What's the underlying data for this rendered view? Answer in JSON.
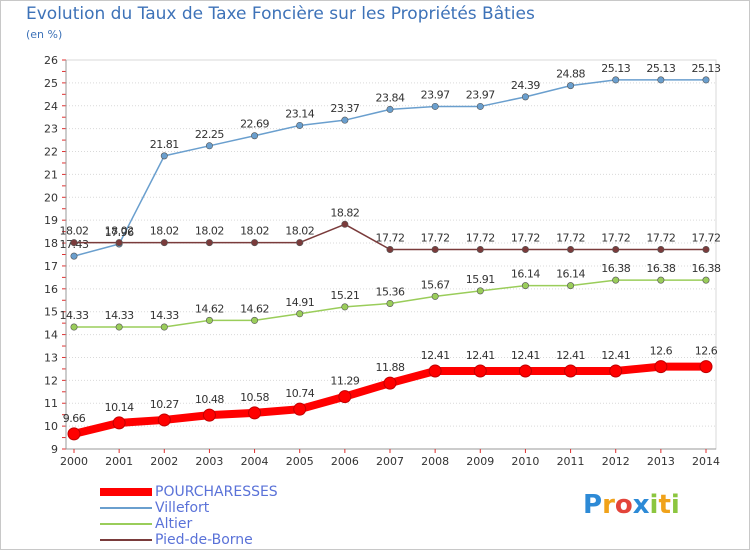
{
  "title": "Evolution du Taux de Taxe Foncière sur les Propriétés Bâties",
  "subtitle": "(en %)",
  "logo": {
    "text": "Proxiti",
    "letters": [
      "P",
      "r",
      "o",
      "x",
      "i",
      "t",
      "i"
    ]
  },
  "chart_data": {
    "type": "line",
    "title": "Evolution du Taux de Taxe Foncière sur les Propriétés Bâties",
    "ylabel": "(en %)",
    "xlabel": "",
    "x": [
      2000,
      2001,
      2002,
      2003,
      2004,
      2005,
      2006,
      2007,
      2008,
      2009,
      2010,
      2011,
      2012,
      2013,
      2014
    ],
    "ylim": [
      9,
      26
    ],
    "yticks": [
      9,
      10,
      11,
      12,
      13,
      14,
      15,
      16,
      17,
      18,
      19,
      20,
      21,
      22,
      23,
      24,
      25,
      26
    ],
    "grid": "horizontal",
    "legend": "bottom-left",
    "series": [
      {
        "name": "POURCHARESSES",
        "color": "#ff0000",
        "values": [
          9.66,
          10.14,
          10.27,
          10.48,
          10.58,
          10.74,
          11.29,
          11.88,
          12.41,
          12.41,
          12.41,
          12.41,
          12.41,
          12.6,
          12.6
        ],
        "labels": [
          "9.66",
          "10.14",
          "10.27",
          "10.48",
          "10.58",
          "10.74",
          "11.29",
          "11.88",
          "12.41",
          "12.41",
          "12.41",
          "12.41",
          "12.41",
          "12.6",
          "12.6"
        ]
      },
      {
        "name": "Villefort",
        "color": "#6a9fce",
        "values": [
          17.43,
          17.96,
          21.81,
          22.25,
          22.69,
          23.14,
          23.37,
          23.84,
          23.97,
          23.97,
          24.39,
          24.88,
          25.13,
          25.13,
          25.13
        ],
        "labels": [
          "17.43",
          "17.96",
          "21.81",
          "22.25",
          "22.69",
          "23.14",
          "23.37",
          "23.84",
          "23.97",
          "23.97",
          "24.39",
          "24.88",
          "25.13",
          "25.13",
          "25.13"
        ]
      },
      {
        "name": "Altier",
        "color": "#9acd5a",
        "values": [
          14.33,
          14.33,
          14.33,
          14.62,
          14.62,
          14.91,
          15.21,
          15.36,
          15.67,
          15.91,
          16.14,
          16.14,
          16.38,
          16.38,
          16.38
        ],
        "labels": [
          "14.33",
          "14.33",
          "14.33",
          "14.62",
          "14.62",
          "14.91",
          "15.21",
          "15.36",
          "15.67",
          "15.91",
          "16.14",
          "16.14",
          "16.38",
          "16.38",
          "16.38"
        ]
      },
      {
        "name": "Pied-de-Borne",
        "color": "#7a3b3b",
        "values": [
          18.02,
          18.02,
          18.02,
          18.02,
          18.02,
          18.02,
          18.82,
          17.72,
          17.72,
          17.72,
          17.72,
          17.72,
          17.72,
          17.72,
          17.72
        ],
        "labels": [
          "18.02",
          "18.02",
          "18.02",
          "18.02",
          "18.02",
          "18.02",
          "18.82",
          "17.72",
          "17.72",
          "17.72",
          "17.72",
          "17.72",
          "17.72",
          "17.72",
          "17.72"
        ]
      }
    ]
  }
}
